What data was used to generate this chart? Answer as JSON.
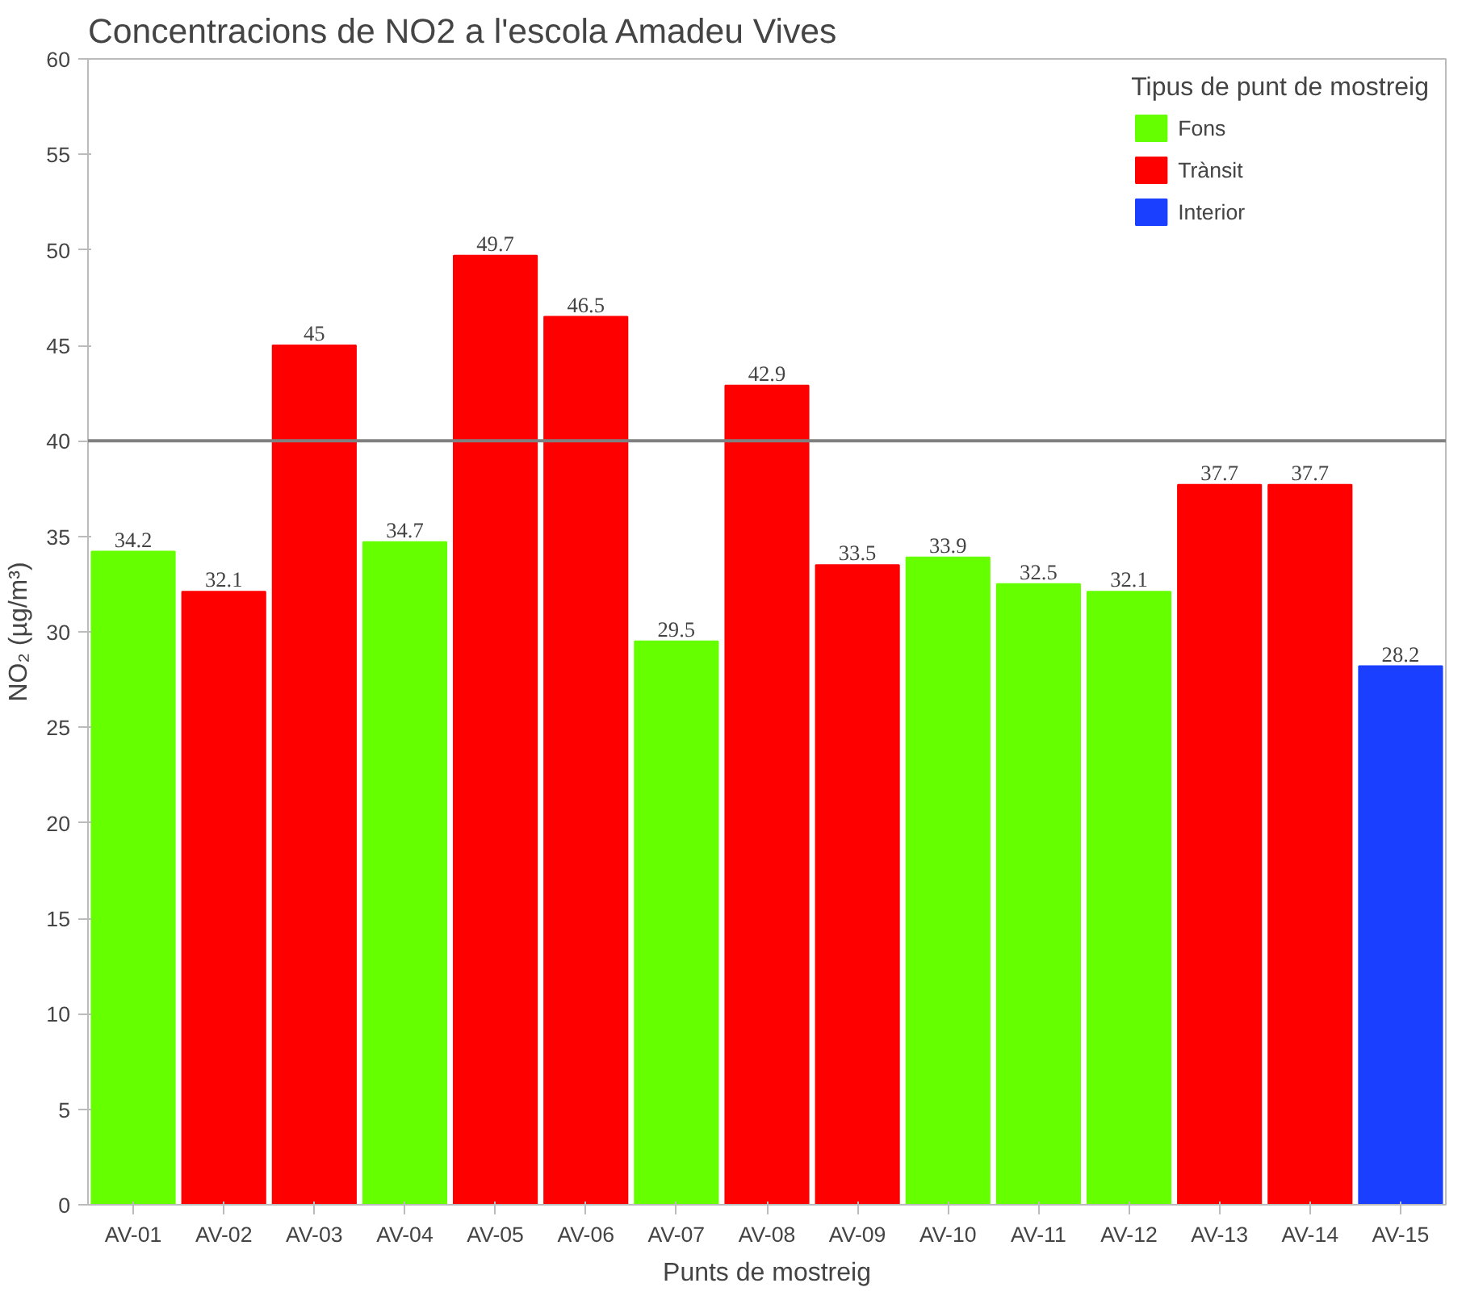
{
  "chart_data": {
    "type": "bar",
    "title": "Concentracions de NO2 a l'escola Amadeu Vives",
    "xlabel": "Punts de mostreig",
    "ylabel": "NO₂ (µg/m³)",
    "legend_title": "Tipus de punt de mostreig",
    "categories": [
      "AV-01",
      "AV-02",
      "AV-03",
      "AV-04",
      "AV-05",
      "AV-06",
      "AV-07",
      "AV-08",
      "AV-09",
      "AV-10",
      "AV-11",
      "AV-12",
      "AV-13",
      "AV-14",
      "AV-15"
    ],
    "series": [
      {
        "name": "Fons",
        "color": "#66ff00",
        "values": [
          34.2,
          null,
          null,
          34.7,
          null,
          null,
          29.5,
          null,
          null,
          33.9,
          32.5,
          32.1,
          null,
          null,
          null
        ]
      },
      {
        "name": "Trànsit",
        "color": "#ff0000",
        "values": [
          null,
          32.1,
          45,
          null,
          49.7,
          46.5,
          null,
          42.9,
          33.5,
          null,
          null,
          null,
          37.7,
          37.7,
          null
        ]
      },
      {
        "name": "Interior",
        "color": "#1a3fff",
        "values": [
          null,
          null,
          null,
          null,
          null,
          null,
          null,
          null,
          null,
          null,
          null,
          null,
          null,
          null,
          28.2
        ]
      }
    ],
    "ylim": [
      0,
      60
    ],
    "yticks": [
      0,
      5,
      10,
      15,
      20,
      25,
      30,
      35,
      40,
      45,
      50,
      55,
      60
    ],
    "ref_lines": [
      {
        "axis": "y",
        "value": 40,
        "color": "#808080"
      }
    ],
    "data_labels": true,
    "grid": false,
    "legend": "top right"
  }
}
